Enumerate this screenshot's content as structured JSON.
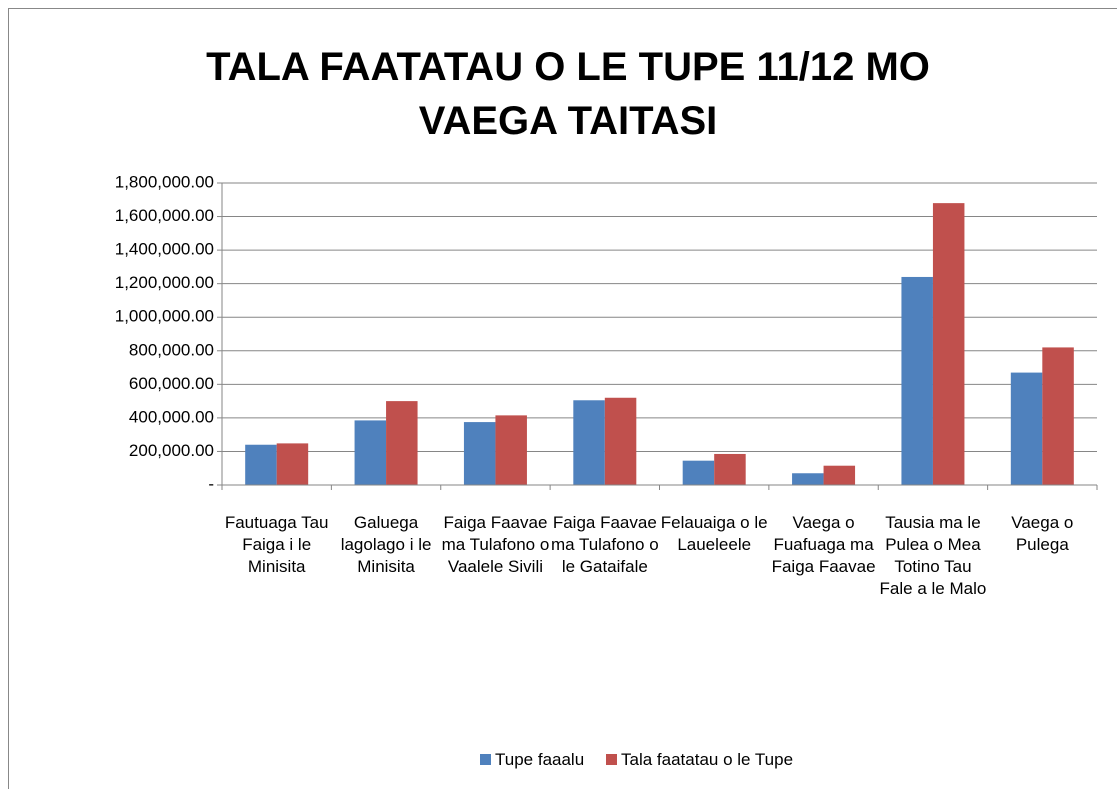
{
  "chart_data": {
    "type": "bar",
    "title": "TALA FAATATAU O LE TUPE 11/12 MO VAEGA TAITASI",
    "categories": [
      "Fautuaga Tau Faiga i le Minisita",
      "Galuega lagolago i le Minisita",
      "Faiga Faavae ma Tulafono o Vaalele Sivili",
      "Faiga Faavae ma Tulafono o le Gataifale",
      "Felauaiga o le Laueleele",
      "Vaega o Fuafuaga ma Faiga Faavae",
      "Tausia ma le Pulea o Mea Totino Tau Fale a le Malo",
      "Vaega o Pulega"
    ],
    "series": [
      {
        "name": "Tupe faaalu",
        "color": "#4f81bd",
        "values": [
          240000,
          385000,
          375000,
          505000,
          145000,
          70000,
          1240000,
          670000
        ]
      },
      {
        "name": "Tala faatatau o le Tupe",
        "color": "#c0504d",
        "values": [
          248000,
          500000,
          415000,
          520000,
          185000,
          115000,
          1680000,
          820000
        ]
      }
    ],
    "ylim": [
      0,
      1800000
    ],
    "yticks": [
      {
        "value": 0,
        "label": "-"
      },
      {
        "value": 200000,
        "label": "200,000.00"
      },
      {
        "value": 400000,
        "label": "400,000.00"
      },
      {
        "value": 600000,
        "label": "600,000.00"
      },
      {
        "value": 800000,
        "label": "800,000.00"
      },
      {
        "value": 1000000,
        "label": "1,000,000.00"
      },
      {
        "value": 1200000,
        "label": "1,200,000.00"
      },
      {
        "value": 1400000,
        "label": "1,400,000.00"
      },
      {
        "value": 1600000,
        "label": "1,600,000.00"
      },
      {
        "value": 1800000,
        "label": "1,800,000.00"
      }
    ],
    "grid": true,
    "legend": "bottom"
  }
}
